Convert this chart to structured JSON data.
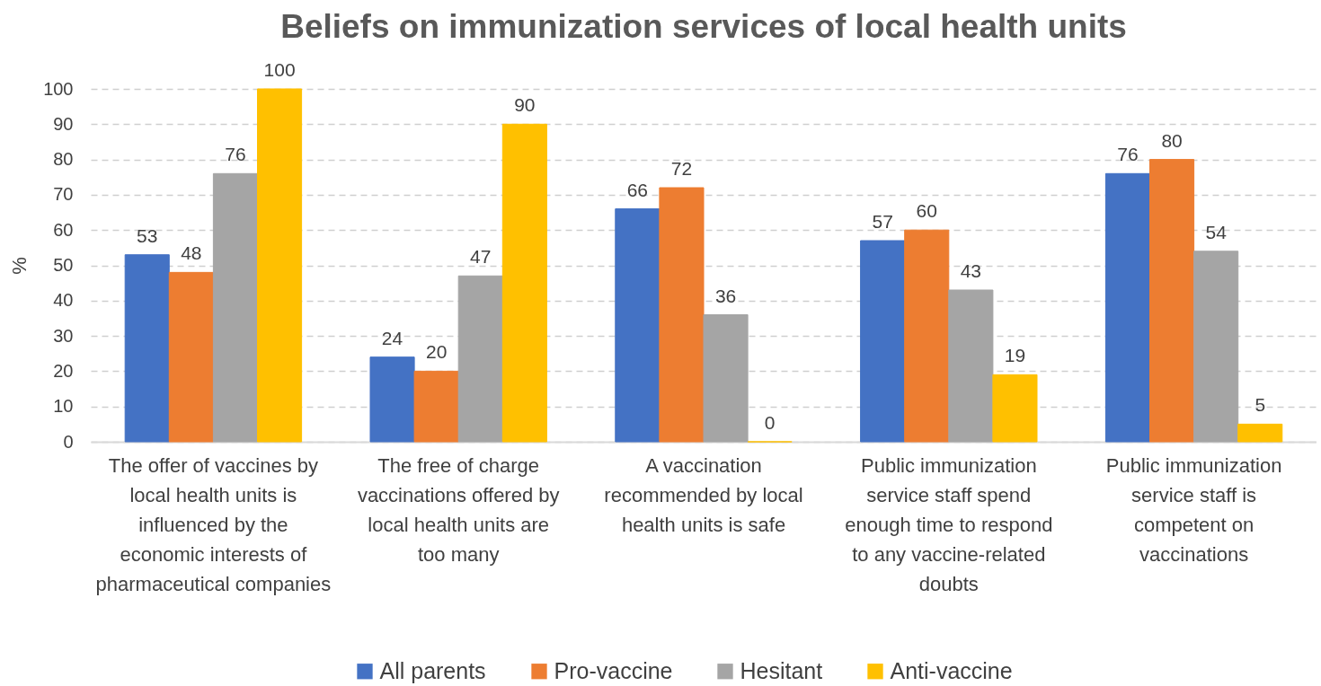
{
  "chart_data": {
    "type": "bar",
    "title": "Beliefs on immunization services of local health units",
    "ylabel": "%",
    "categories": [
      "The offer of vaccines by local health units is influenced by the economic interests of pharmaceutical companies",
      "The free of charge vaccinations offered by local health units are too many",
      "A vaccination recommended by local health units is safe",
      "Public immunization service staff spend enough time to respond to any vaccine-related doubts",
      "Public immunization service staff is competent on vaccinations"
    ],
    "series": [
      {
        "name": "All parents",
        "color": "#4472c4",
        "values": [
          53,
          24,
          66,
          57,
          76
        ]
      },
      {
        "name": "Pro-vaccine",
        "color": "#ed7d31",
        "values": [
          48,
          20,
          72,
          60,
          80
        ]
      },
      {
        "name": "Hesitant",
        "color": "#a5a5a5",
        "values": [
          76,
          47,
          36,
          43,
          54
        ]
      },
      {
        "name": "Anti-vaccine",
        "color": "#ffc000",
        "values": [
          100,
          90,
          0,
          19,
          5
        ]
      }
    ],
    "ylim": [
      0,
      100
    ],
    "yticks": [
      0,
      10,
      20,
      30,
      40,
      50,
      60,
      70,
      80,
      90,
      100
    ],
    "grid": "y",
    "legend": "bottom",
    "data_labels": true
  }
}
